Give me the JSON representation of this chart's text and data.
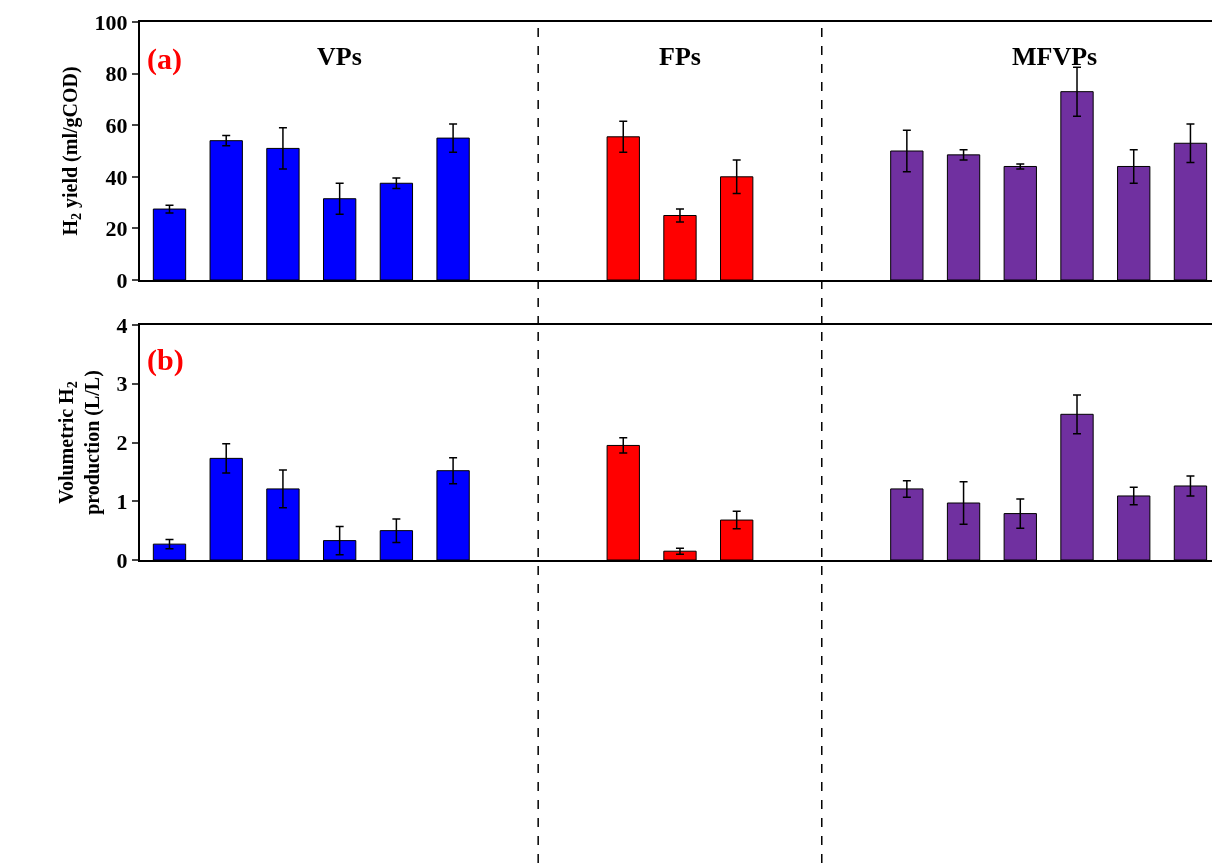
{
  "chart_data": [
    {
      "type": "bar",
      "ylabel": "H$_{2}$ yield (ml/gCOD)",
      "annotations": [
        "(a)",
        "VPs",
        "FPs",
        "MFVPs"
      ],
      "categories": [
        null,
        null,
        null,
        null,
        null,
        null,
        null,
        null,
        null,
        null,
        null,
        null,
        null,
        null,
        null,
        null,
        null,
        null,
        null
      ],
      "values": [
        27.5,
        54,
        51,
        31.5,
        37.5,
        55,
        null,
        null,
        55.5,
        25,
        40,
        null,
        null,
        50,
        48.5,
        44,
        73,
        44,
        53
      ],
      "errors": [
        1.5,
        2,
        8,
        6,
        2,
        5.5,
        null,
        null,
        6,
        2.5,
        6.5,
        null,
        null,
        8,
        2,
        1,
        9.5,
        6.5,
        7.5
      ],
      "colors": [
        "#0000ff",
        "#0000ff",
        "#0000ff",
        "#0000ff",
        "#0000ff",
        "#0000ff",
        null,
        null,
        "#ff0000",
        "#ff0000",
        "#ff0000",
        null,
        null,
        "#7030a0",
        "#7030a0",
        "#7030a0",
        "#7030a0",
        "#7030a0",
        "#7030a0"
      ],
      "ylim": [
        0,
        100
      ],
      "yticks": [
        0,
        20,
        40,
        60,
        80,
        100
      ],
      "tick_labels": "y"
    },
    {
      "type": "bar",
      "ylabel": "Volumetric H$_{2}$\nproduction (L/L)",
      "annotations": [
        "(b)"
      ],
      "categories": [
        null,
        null,
        null,
        null,
        null,
        null,
        null,
        null,
        null,
        null,
        null,
        null,
        null,
        null,
        null,
        null,
        null,
        null,
        null
      ],
      "values": [
        0.27,
        1.73,
        1.21,
        0.33,
        0.5,
        1.52,
        null,
        null,
        1.95,
        0.15,
        0.68,
        null,
        null,
        1.21,
        0.97,
        0.79,
        2.48,
        1.09,
        1.26
      ],
      "errors": [
        0.08,
        0.25,
        0.32,
        0.24,
        0.2,
        0.22,
        null,
        null,
        0.13,
        0.05,
        0.15,
        null,
        null,
        0.14,
        0.36,
        0.25,
        0.33,
        0.15,
        0.17
      ],
      "colors": [
        "#0000ff",
        "#0000ff",
        "#0000ff",
        "#0000ff",
        "#0000ff",
        "#0000ff",
        null,
        null,
        "#ff0000",
        "#ff0000",
        "#ff0000",
        null,
        null,
        "#7030a0",
        "#7030a0",
        "#7030a0",
        "#7030a0",
        "#7030a0",
        "#7030a0"
      ],
      "ylim": [
        0,
        4
      ],
      "yticks": [
        0,
        1,
        2,
        3,
        4
      ],
      "tick_labels": "y"
    }
  ]
}
